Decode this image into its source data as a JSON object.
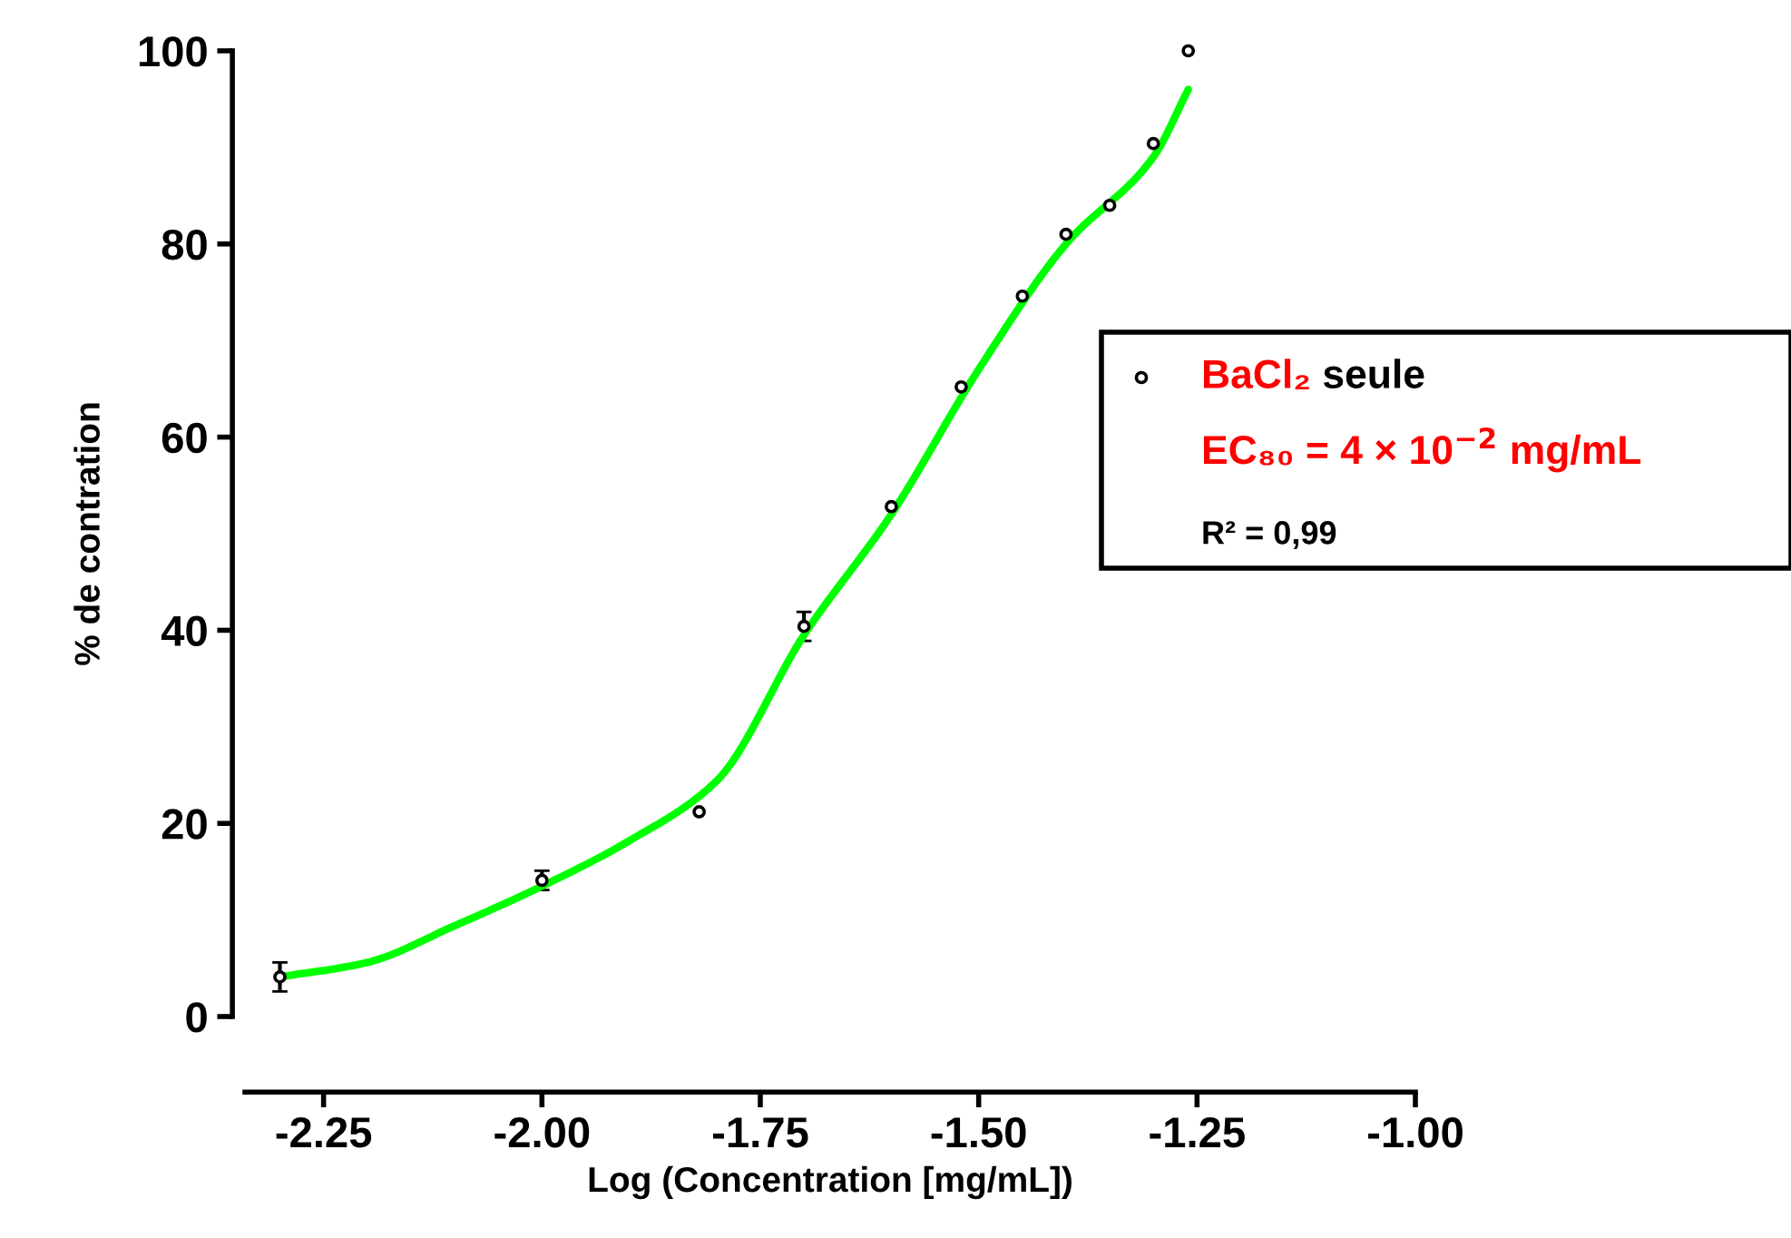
{
  "chart_data": {
    "type": "scatter",
    "xlabel": "Log (Concentration [mg/mL])",
    "ylabel": "% de contration",
    "xlim": [
      -2.34,
      -1.0
    ],
    "xticks": [
      {
        "value": -2.25,
        "label": "-2.25"
      },
      {
        "value": -2.0,
        "label": "-2.00"
      },
      {
        "value": -1.75,
        "label": "-1.75"
      },
      {
        "value": -1.5,
        "label": "-1.50"
      },
      {
        "value": -1.25,
        "label": "-1.25"
      },
      {
        "value": -1.0,
        "label": "-1.00"
      }
    ],
    "ylim": [
      0,
      100
    ],
    "yticks": [
      0,
      20,
      40,
      60,
      80,
      100
    ],
    "grid": false,
    "legend": "right",
    "series": [
      {
        "name": "BaCl₂ seule",
        "marker": "circle",
        "color": "#000000",
        "x": [
          -2.3,
          -2.0,
          -1.82,
          -1.7,
          -1.6,
          -1.52,
          -1.45,
          -1.4,
          -1.35,
          -1.3,
          -1.26
        ],
        "values": [
          4.1,
          14.1,
          21.2,
          40.4,
          52.8,
          65.2,
          74.6,
          81.0,
          84.0,
          90.4,
          100
        ],
        "errors": [
          1.5,
          1.0,
          null,
          1.5,
          null,
          null,
          null,
          null,
          null,
          null,
          null
        ]
      },
      {
        "type": "line",
        "marker": "none",
        "color": "#00ff00",
        "x": [
          -2.3,
          -2.2,
          -2.1,
          -2.0,
          -1.9,
          -1.8,
          -1.7,
          -1.6,
          -1.5,
          -1.4,
          -1.3,
          -1.26
        ],
        "values": [
          4.1,
          5.6,
          9.4,
          13.5,
          18.2,
          24.4,
          39.5,
          52,
          67,
          80,
          89,
          96
        ]
      }
    ],
    "annotations": [
      "EC₈₀ = 4 × 10$^{−2}$ mg/mL",
      "R² = 0,99"
    ]
  }
}
